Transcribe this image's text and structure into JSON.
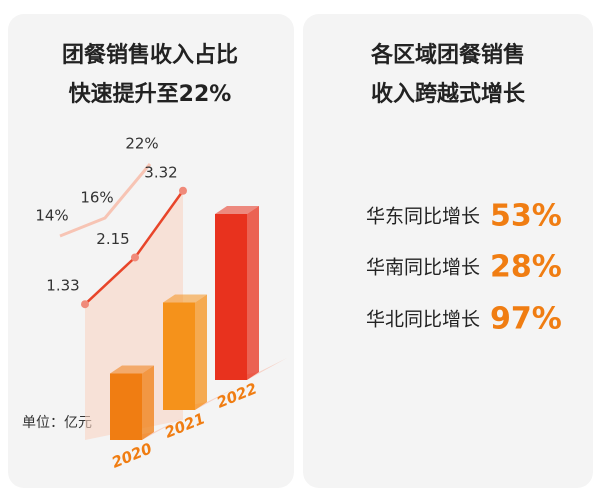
{
  "chart_data": {
    "type": "bar",
    "title_lines": [
      "团餐销售收入占比",
      "快速提升至22%"
    ],
    "unit_label": "单位：亿元",
    "categories": [
      "2020",
      "2021",
      "2022"
    ],
    "series": [
      {
        "values": [
          1.33,
          2.15,
          3.32
        ],
        "colors": [
          "#f07d12",
          "#f5921b",
          "#e8321e"
        ]
      },
      {
        "values": [
          14,
          16,
          22
        ],
        "value_labels": [
          "14%",
          "16%",
          "22%"
        ],
        "color": "#f7c4b4"
      }
    ]
  },
  "right_panel": {
    "title_lines": [
      "各区域团餐销售",
      "收入跨越式增长"
    ],
    "rows": [
      {
        "label": "华东同比增长",
        "value": "53%"
      },
      {
        "label": "华南同比增长",
        "value": "28%"
      },
      {
        "label": "华北同比增长",
        "value": "97%"
      }
    ]
  }
}
